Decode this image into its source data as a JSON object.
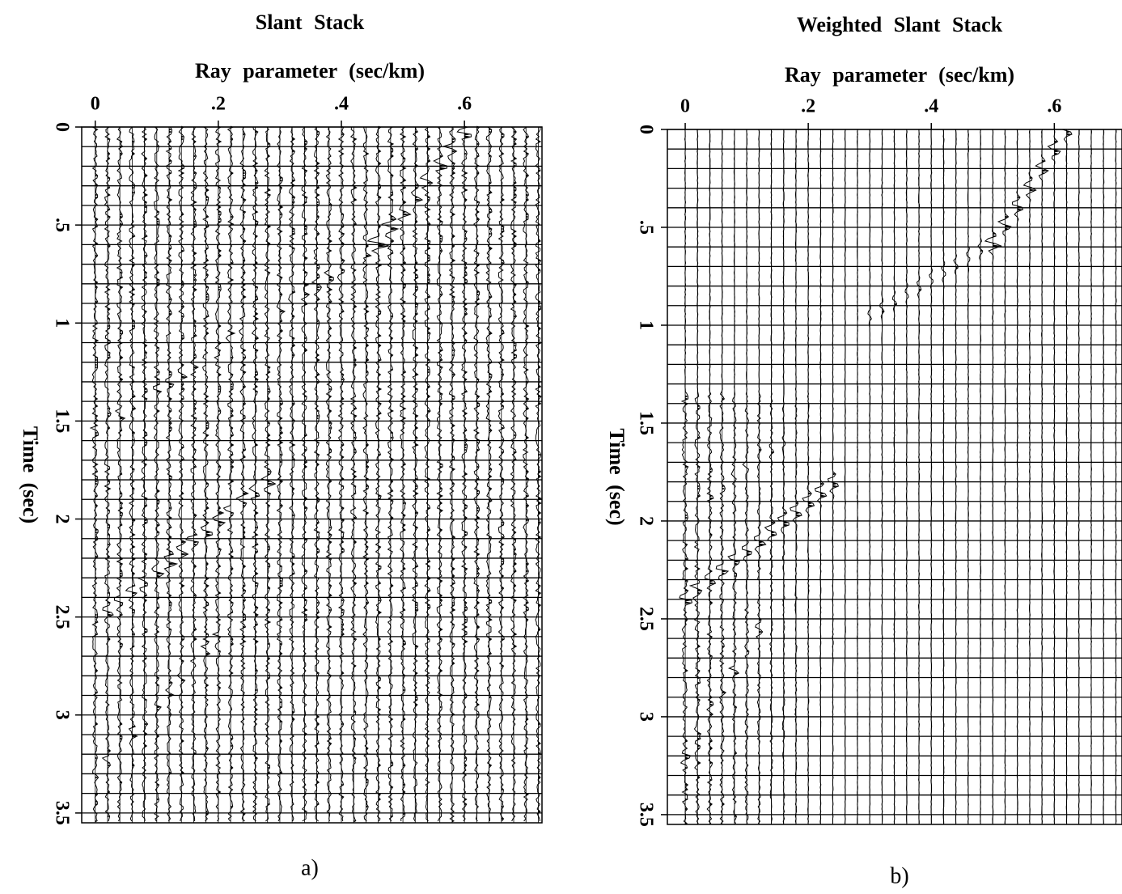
{
  "chart_data": [
    {
      "type": "wiggle",
      "title": "Slant Stack",
      "xlabel": "Ray parameter (sec/km)",
      "ylabel": "Time (sec)",
      "caption": "a)",
      "xlim": [
        -0.022,
        0.726
      ],
      "xticks": [
        0,
        {
          "value": 0.2,
          "label": ".2"
        },
        {
          "value": 0.4,
          "label": ".4"
        },
        {
          "value": 0.6,
          "label": ".6"
        }
      ],
      "ylim": [
        0,
        3.55
      ],
      "yticks": [
        0,
        {
          "value": 0.5,
          "label": ".5"
        },
        1,
        1.5,
        2,
        2.5,
        3,
        3.5
      ]
    },
    {
      "type": "wiggle",
      "title": "Weighted Slant Stack",
      "xlabel": "Ray parameter (sec/km)",
      "ylabel": "Time (sec)",
      "caption": "b)",
      "xlim": [
        -0.029,
        0.71
      ],
      "xticks": [
        0,
        {
          "value": 0.2,
          "label": ".2"
        },
        {
          "value": 0.4,
          "label": ".4"
        },
        {
          "value": 0.6,
          "label": ".6"
        }
      ],
      "ylim": [
        0,
        3.55
      ],
      "yticks": [
        0,
        {
          "value": 0.5,
          "label": ".5"
        },
        1,
        1.5,
        2,
        2.5,
        3,
        3.5
      ]
    }
  ]
}
